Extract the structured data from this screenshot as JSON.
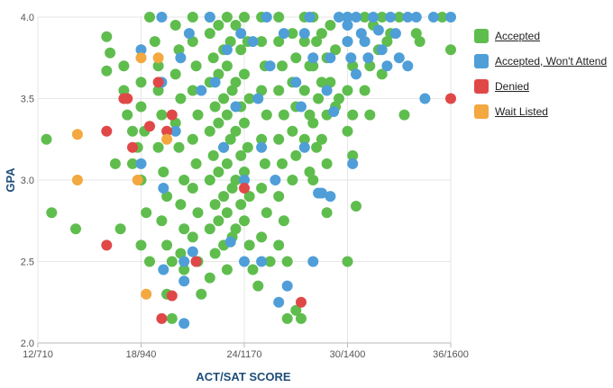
{
  "chart_data": {
    "type": "scatter",
    "title": "",
    "xlabel": "ACT/SAT SCORE",
    "ylabel": "GPA",
    "x_ticks": [
      {
        "value": 12,
        "label": "12/710"
      },
      {
        "value": 18,
        "label": "18/940"
      },
      {
        "value": 24,
        "label": "24/1170"
      },
      {
        "value": 30,
        "label": "30/1400"
      },
      {
        "value": 36,
        "label": "36/1600"
      }
    ],
    "y_ticks": [
      {
        "value": 2.0,
        "label": "2.0"
      },
      {
        "value": 2.5,
        "label": "2.5"
      },
      {
        "value": 3.0,
        "label": "3.0"
      },
      {
        "value": 3.5,
        "label": "3.5"
      },
      {
        "value": 4.0,
        "label": "4.0"
      }
    ],
    "xlim": [
      12,
      36
    ],
    "ylim": [
      2.0,
      4.0
    ],
    "grid": true,
    "legend_position": "right",
    "series": [
      {
        "name": "Accepted",
        "color": "#5fbd4e",
        "points": [
          [
            12.5,
            3.25
          ],
          [
            12.8,
            2.8
          ],
          [
            14.2,
            2.7
          ],
          [
            16.0,
            3.88
          ],
          [
            16.2,
            3.78
          ],
          [
            16.0,
            3.67
          ],
          [
            16.5,
            3.1
          ],
          [
            16.8,
            2.7
          ],
          [
            17.0,
            3.7
          ],
          [
            17.0,
            3.55
          ],
          [
            17.2,
            3.4
          ],
          [
            17.5,
            3.3
          ],
          [
            17.8,
            3.2
          ],
          [
            17.5,
            3.1
          ],
          [
            18.0,
            3.6
          ],
          [
            18.0,
            3.45
          ],
          [
            18.2,
            3.3
          ],
          [
            18.0,
            3.0
          ],
          [
            18.3,
            2.8
          ],
          [
            18.0,
            2.6
          ],
          [
            18.5,
            2.5
          ],
          [
            18.5,
            4.0
          ],
          [
            18.8,
            3.85
          ],
          [
            19.0,
            3.7
          ],
          [
            19.0,
            3.55
          ],
          [
            19.2,
            3.4
          ],
          [
            19.0,
            3.2
          ],
          [
            19.3,
            3.05
          ],
          [
            19.5,
            2.9
          ],
          [
            19.2,
            2.75
          ],
          [
            19.5,
            2.6
          ],
          [
            19.8,
            2.5
          ],
          [
            19.5,
            2.3
          ],
          [
            19.8,
            2.15
          ],
          [
            20.0,
            3.95
          ],
          [
            20.2,
            3.8
          ],
          [
            20.0,
            3.65
          ],
          [
            20.3,
            3.5
          ],
          [
            20.0,
            3.35
          ],
          [
            20.2,
            3.2
          ],
          [
            20.5,
            3.0
          ],
          [
            20.3,
            2.85
          ],
          [
            20.5,
            2.7
          ],
          [
            20.3,
            2.55
          ],
          [
            20.5,
            2.45
          ],
          [
            21.0,
            4.0
          ],
          [
            21.0,
            3.85
          ],
          [
            21.2,
            3.7
          ],
          [
            21.0,
            3.55
          ],
          [
            21.3,
            3.4
          ],
          [
            21.0,
            3.25
          ],
          [
            21.2,
            3.1
          ],
          [
            21.0,
            2.95
          ],
          [
            21.3,
            2.8
          ],
          [
            21.0,
            2.65
          ],
          [
            21.3,
            2.5
          ],
          [
            21.5,
            2.3
          ],
          [
            22.0,
            4.0
          ],
          [
            22.0,
            3.9
          ],
          [
            22.2,
            3.75
          ],
          [
            22.0,
            3.6
          ],
          [
            22.3,
            3.45
          ],
          [
            22.0,
            3.3
          ],
          [
            22.2,
            3.15
          ],
          [
            22.0,
            3.0
          ],
          [
            22.3,
            2.85
          ],
          [
            22.0,
            2.7
          ],
          [
            22.3,
            2.55
          ],
          [
            22.0,
            2.4
          ],
          [
            22.5,
            3.95
          ],
          [
            22.8,
            3.8
          ],
          [
            22.5,
            3.65
          ],
          [
            22.8,
            3.5
          ],
          [
            22.5,
            3.35
          ],
          [
            22.8,
            3.2
          ],
          [
            22.5,
            3.05
          ],
          [
            22.8,
            2.9
          ],
          [
            22.5,
            2.75
          ],
          [
            22.8,
            2.6
          ],
          [
            23.0,
            4.0
          ],
          [
            23.2,
            3.85
          ],
          [
            23.0,
            3.7
          ],
          [
            23.3,
            3.55
          ],
          [
            23.0,
            3.4
          ],
          [
            23.2,
            3.25
          ],
          [
            23.0,
            3.1
          ],
          [
            23.3,
            2.95
          ],
          [
            23.0,
            2.8
          ],
          [
            23.3,
            2.65
          ],
          [
            23.0,
            2.45
          ],
          [
            23.5,
            3.95
          ],
          [
            23.8,
            3.8
          ],
          [
            23.5,
            3.6
          ],
          [
            23.8,
            3.45
          ],
          [
            23.5,
            3.3
          ],
          [
            23.8,
            3.15
          ],
          [
            23.5,
            3.0
          ],
          [
            23.8,
            2.85
          ],
          [
            23.5,
            2.7
          ],
          [
            24.0,
            4.0
          ],
          [
            24.2,
            3.85
          ],
          [
            24.0,
            3.65
          ],
          [
            24.3,
            3.5
          ],
          [
            24.0,
            3.35
          ],
          [
            24.2,
            3.2
          ],
          [
            24.0,
            3.05
          ],
          [
            24.3,
            2.9
          ],
          [
            24.0,
            2.75
          ],
          [
            24.3,
            2.6
          ],
          [
            24.5,
            2.45
          ],
          [
            24.8,
            2.35
          ],
          [
            25.0,
            4.0
          ],
          [
            25.0,
            3.85
          ],
          [
            25.2,
            3.7
          ],
          [
            25.0,
            3.55
          ],
          [
            25.3,
            3.4
          ],
          [
            25.0,
            3.25
          ],
          [
            25.2,
            3.1
          ],
          [
            25.0,
            2.95
          ],
          [
            25.3,
            2.8
          ],
          [
            25.0,
            2.65
          ],
          [
            25.5,
            2.5
          ],
          [
            26.0,
            4.0
          ],
          [
            26.0,
            3.85
          ],
          [
            26.2,
            3.7
          ],
          [
            26.0,
            3.55
          ],
          [
            26.3,
            3.4
          ],
          [
            26.0,
            3.25
          ],
          [
            26.2,
            3.1
          ],
          [
            26.0,
            2.9
          ],
          [
            26.3,
            2.75
          ],
          [
            26.0,
            2.6
          ],
          [
            26.5,
            2.5
          ],
          [
            26.5,
            2.15
          ],
          [
            26.8,
            3.9
          ],
          [
            27.0,
            3.75
          ],
          [
            26.8,
            3.6
          ],
          [
            27.0,
            3.45
          ],
          [
            26.8,
            3.3
          ],
          [
            27.0,
            3.15
          ],
          [
            26.8,
            3.0
          ],
          [
            27.0,
            2.2
          ],
          [
            27.3,
            2.15
          ],
          [
            27.5,
            4.0
          ],
          [
            27.5,
            3.85
          ],
          [
            27.8,
            3.7
          ],
          [
            27.5,
            3.55
          ],
          [
            27.8,
            3.4
          ],
          [
            27.5,
            3.25
          ],
          [
            27.8,
            3.05
          ],
          [
            28.0,
            4.0
          ],
          [
            28.2,
            3.85
          ],
          [
            28.0,
            3.7
          ],
          [
            28.3,
            3.5
          ],
          [
            28.0,
            3.35
          ],
          [
            28.2,
            3.2
          ],
          [
            28.0,
            3.0
          ],
          [
            28.5,
            3.9
          ],
          [
            28.8,
            3.75
          ],
          [
            28.5,
            3.6
          ],
          [
            28.8,
            3.4
          ],
          [
            28.5,
            3.25
          ],
          [
            28.8,
            3.1
          ],
          [
            28.8,
            2.8
          ],
          [
            29.0,
            3.95
          ],
          [
            29.3,
            3.8
          ],
          [
            29.0,
            3.6
          ],
          [
            29.3,
            3.45
          ],
          [
            29.5,
            3.5
          ],
          [
            30.0,
            4.0
          ],
          [
            30.0,
            3.85
          ],
          [
            30.3,
            3.7
          ],
          [
            30.0,
            3.55
          ],
          [
            30.3,
            3.4
          ],
          [
            30.0,
            3.3
          ],
          [
            30.3,
            3.15
          ],
          [
            30.0,
            2.5
          ],
          [
            30.5,
            2.84
          ],
          [
            31.0,
            4.0
          ],
          [
            31.0,
            3.85
          ],
          [
            31.3,
            3.7
          ],
          [
            31.0,
            3.55
          ],
          [
            31.3,
            3.4
          ],
          [
            31.5,
            3.95
          ],
          [
            31.8,
            3.8
          ],
          [
            32.0,
            4.0
          ],
          [
            32.3,
            3.85
          ],
          [
            32.0,
            3.65
          ],
          [
            32.5,
            3.9
          ],
          [
            33.0,
            4.0
          ],
          [
            33.3,
            3.4
          ],
          [
            34.0,
            3.9
          ],
          [
            34.2,
            3.85
          ],
          [
            35.5,
            4.0
          ],
          [
            36.0,
            3.8
          ]
        ]
      },
      {
        "name": "Accepted, Won't Attend",
        "color": "#4f9ed8",
        "points": [
          [
            18.0,
            3.8
          ],
          [
            18.0,
            3.1
          ],
          [
            19.2,
            4.0
          ],
          [
            19.2,
            3.6
          ],
          [
            19.3,
            2.95
          ],
          [
            19.3,
            2.45
          ],
          [
            20.0,
            3.3
          ],
          [
            20.3,
            3.75
          ],
          [
            20.5,
            2.12
          ],
          [
            20.5,
            2.5
          ],
          [
            20.5,
            2.38
          ],
          [
            20.8,
            3.9
          ],
          [
            21.0,
            2.56
          ],
          [
            21.2,
            2.5
          ],
          [
            21.5,
            3.55
          ],
          [
            22.0,
            4.0
          ],
          [
            22.3,
            3.6
          ],
          [
            22.8,
            3.2
          ],
          [
            23.0,
            3.8
          ],
          [
            23.2,
            2.62
          ],
          [
            23.5,
            3.45
          ],
          [
            23.8,
            3.9
          ],
          [
            24.0,
            3.0
          ],
          [
            24.0,
            2.5
          ],
          [
            24.5,
            3.85
          ],
          [
            24.8,
            3.5
          ],
          [
            25.0,
            3.2
          ],
          [
            25.0,
            2.5
          ],
          [
            25.3,
            4.0
          ],
          [
            25.5,
            3.7
          ],
          [
            25.8,
            3.0
          ],
          [
            26.0,
            2.25
          ],
          [
            26.3,
            3.9
          ],
          [
            26.5,
            2.35
          ],
          [
            27.0,
            3.6
          ],
          [
            27.3,
            3.45
          ],
          [
            27.5,
            3.9
          ],
          [
            27.5,
            3.2
          ],
          [
            27.8,
            4.0
          ],
          [
            28.0,
            3.75
          ],
          [
            28.0,
            2.5
          ],
          [
            28.3,
            2.92
          ],
          [
            28.5,
            2.92
          ],
          [
            28.8,
            3.55
          ],
          [
            29.0,
            3.75
          ],
          [
            29.0,
            2.9
          ],
          [
            29.2,
            3.42
          ],
          [
            29.5,
            4.0
          ],
          [
            30.0,
            4.0
          ],
          [
            30.0,
            3.95
          ],
          [
            30.0,
            3.85
          ],
          [
            30.2,
            3.75
          ],
          [
            30.5,
            3.65
          ],
          [
            30.3,
            3.1
          ],
          [
            30.5,
            4.0
          ],
          [
            30.8,
            3.9
          ],
          [
            31.0,
            3.85
          ],
          [
            31.2,
            3.75
          ],
          [
            31.5,
            4.0
          ],
          [
            31.8,
            3.92
          ],
          [
            32.0,
            3.8
          ],
          [
            32.3,
            3.7
          ],
          [
            32.5,
            4.0
          ],
          [
            32.8,
            3.9
          ],
          [
            33.0,
            3.75
          ],
          [
            33.5,
            4.0
          ],
          [
            33.5,
            3.7
          ],
          [
            34.0,
            4.0
          ],
          [
            34.5,
            3.5
          ],
          [
            35.0,
            4.0
          ],
          [
            36.0,
            4.0
          ]
        ]
      },
      {
        "name": "Denied",
        "color": "#e04848",
        "points": [
          [
            16.0,
            3.3
          ],
          [
            16.0,
            2.6
          ],
          [
            17.0,
            3.5
          ],
          [
            17.2,
            3.5
          ],
          [
            17.5,
            3.2
          ],
          [
            18.5,
            3.33
          ],
          [
            19.0,
            3.6
          ],
          [
            19.5,
            3.3
          ],
          [
            19.8,
            3.4
          ],
          [
            19.2,
            2.15
          ],
          [
            19.8,
            2.29
          ],
          [
            21.2,
            2.5
          ],
          [
            24.0,
            2.95
          ],
          [
            27.3,
            2.25
          ],
          [
            36.0,
            3.5
          ]
        ]
      },
      {
        "name": "Wait Listed",
        "color": "#f3a840",
        "points": [
          [
            14.3,
            3.28
          ],
          [
            14.3,
            3.0
          ],
          [
            18.0,
            3.75
          ],
          [
            17.8,
            3.0
          ],
          [
            18.3,
            2.3
          ],
          [
            19.0,
            3.75
          ],
          [
            19.5,
            3.25
          ]
        ]
      }
    ]
  }
}
